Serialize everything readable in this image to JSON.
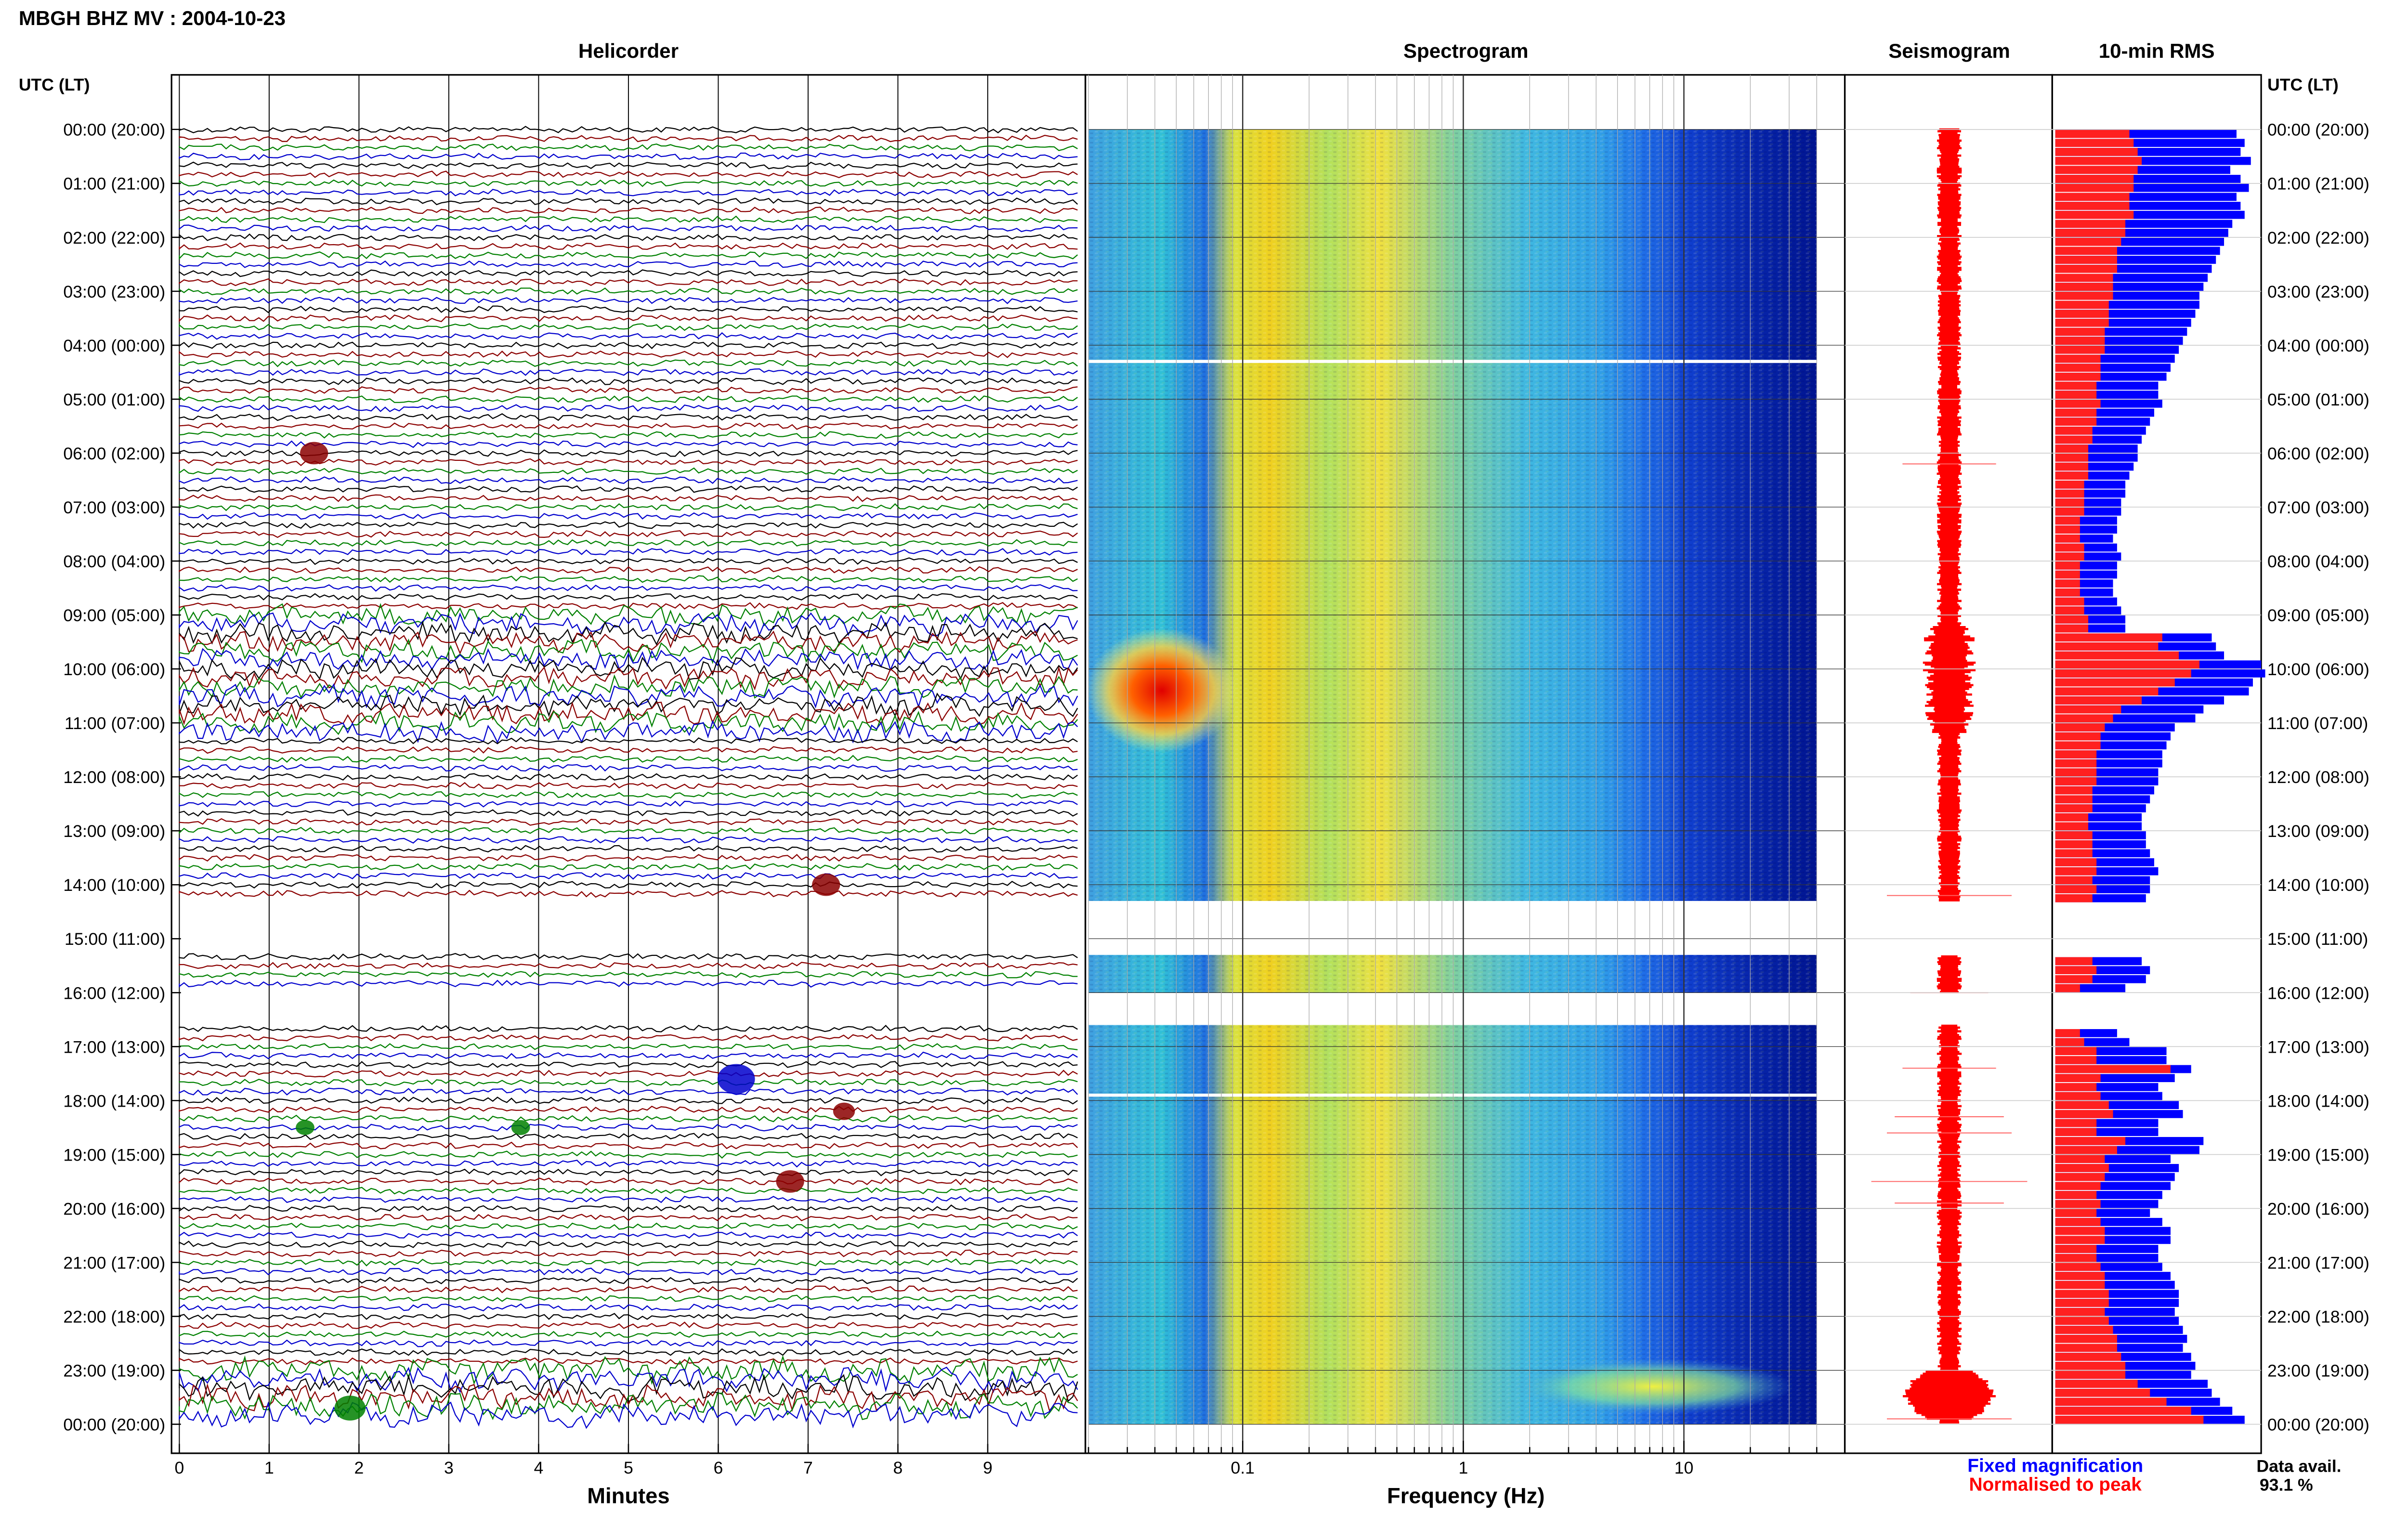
{
  "header": {
    "title": "MBGH BHZ MV : 2004-10-23"
  },
  "panels": {
    "helicorder_title": "Helicorder",
    "spectrogram_title": "Spectrogram",
    "seismogram_title": "Seismogram",
    "rms_title": "10-min RMS"
  },
  "axes": {
    "time_label_left": "UTC (LT)",
    "time_label_right": "UTC (LT)",
    "minutes_label": "Minutes",
    "frequency_label": "Frequency (Hz)"
  },
  "legend": {
    "fixed": "Fixed magnification",
    "normalised": "Normalised to peak",
    "fixed_color": "#0000ff",
    "normalised_color": "#ff0000"
  },
  "availability": {
    "label": "Data avail.",
    "value": "93.1 %"
  },
  "colors": {
    "trace_cycle": [
      "#000000",
      "#8b0000",
      "#008000",
      "#0000cd"
    ],
    "spectrogram_low": "#00008b",
    "spectrogram_high": "#ff0000"
  },
  "chart_data": {
    "type": "heatmap",
    "time_ticks": [
      "00:00 (20:00)",
      "01:00 (21:00)",
      "02:00 (22:00)",
      "03:00 (23:00)",
      "04:00 (00:00)",
      "05:00 (01:00)",
      "06:00 (02:00)",
      "07:00 (03:00)",
      "08:00 (04:00)",
      "09:00 (05:00)",
      "10:00 (06:00)",
      "11:00 (07:00)",
      "12:00 (08:00)",
      "13:00 (09:00)",
      "14:00 (10:00)",
      "15:00 (11:00)",
      "16:00 (12:00)",
      "17:00 (13:00)",
      "18:00 (14:00)",
      "19:00 (15:00)",
      "20:00 (16:00)",
      "21:00 (17:00)",
      "22:00 (18:00)",
      "23:00 (19:00)",
      "00:00 (20:00)"
    ],
    "minute_ticks": [
      "0",
      "1",
      "2",
      "3",
      "4",
      "5",
      "6",
      "7",
      "8",
      "9"
    ],
    "frequency_ticks": [
      "0.1",
      "1",
      "10"
    ],
    "frequency_range_hz": [
      0.02,
      40
    ],
    "data_gaps_utc_hours": [
      [
        14.3,
        15.3
      ],
      [
        16.0,
        16.6
      ]
    ],
    "rms_10min": {
      "fixed": [
        0.88,
        0.92,
        0.9,
        0.95,
        0.85,
        0.9,
        0.94,
        0.88,
        0.9,
        0.92,
        0.86,
        0.84,
        0.82,
        0.8,
        0.78,
        0.76,
        0.74,
        0.72,
        0.7,
        0.7,
        0.68,
        0.66,
        0.64,
        0.62,
        0.6,
        0.58,
        0.56,
        0.54,
        0.5,
        0.5,
        0.52,
        0.48,
        0.46,
        0.44,
        0.42,
        0.4,
        0.4,
        0.38,
        0.36,
        0.34,
        0.34,
        0.32,
        0.32,
        0.3,
        0.3,
        0.28,
        0.3,
        0.32,
        0.3,
        0.3,
        0.28,
        0.28,
        0.3,
        0.32,
        0.34,
        0.34,
        0.76,
        0.78,
        0.82,
        1.0,
        1.02,
        0.96,
        0.94,
        0.82,
        0.72,
        0.68,
        0.58,
        0.56,
        0.54,
        0.52,
        0.52,
        0.5,
        0.5,
        0.48,
        0.46,
        0.44,
        0.42,
        0.42,
        0.44,
        0.44,
        0.46,
        0.48,
        0.5,
        0.46,
        0.46,
        0.44,
        0.42,
        0.46,
        0.44,
        0.34,
        0.3,
        0.36,
        0.54,
        0.54,
        0.66,
        0.58,
        0.5,
        0.52,
        0.6,
        0.62,
        0.5,
        0.5,
        0.72,
        0.7,
        0.56,
        0.6,
        0.58,
        0.56,
        0.52,
        0.5,
        0.46,
        0.52,
        0.56,
        0.56,
        0.5,
        0.5,
        0.52,
        0.56,
        0.58,
        0.6,
        0.6,
        0.58,
        0.6,
        0.62,
        0.64,
        0.62,
        0.66,
        0.68,
        0.66,
        0.74,
        0.76,
        0.8,
        0.86,
        0.92,
        1.02,
        1.0,
        0.92,
        0.82
      ],
      "normalised": [
        0.36,
        0.38,
        0.4,
        0.42,
        0.4,
        0.38,
        0.38,
        0.36,
        0.36,
        0.38,
        0.34,
        0.34,
        0.32,
        0.3,
        0.3,
        0.3,
        0.28,
        0.28,
        0.28,
        0.26,
        0.26,
        0.26,
        0.24,
        0.24,
        0.24,
        0.22,
        0.22,
        0.22,
        0.2,
        0.2,
        0.22,
        0.2,
        0.2,
        0.18,
        0.18,
        0.16,
        0.16,
        0.16,
        0.16,
        0.14,
        0.14,
        0.14,
        0.14,
        0.12,
        0.12,
        0.12,
        0.14,
        0.14,
        0.12,
        0.12,
        0.12,
        0.12,
        0.14,
        0.14,
        0.16,
        0.16,
        0.52,
        0.5,
        0.6,
        0.7,
        0.66,
        0.58,
        0.5,
        0.42,
        0.32,
        0.28,
        0.24,
        0.22,
        0.22,
        0.2,
        0.2,
        0.2,
        0.2,
        0.18,
        0.18,
        0.18,
        0.16,
        0.16,
        0.18,
        0.18,
        0.18,
        0.2,
        0.2,
        0.18,
        0.2,
        0.18,
        0.18,
        0.2,
        0.18,
        0.12,
        0.12,
        0.14,
        0.2,
        0.2,
        0.56,
        0.22,
        0.2,
        0.22,
        0.26,
        0.28,
        0.2,
        0.2,
        0.34,
        0.3,
        0.24,
        0.26,
        0.24,
        0.22,
        0.2,
        0.22,
        0.2,
        0.22,
        0.24,
        0.24,
        0.2,
        0.2,
        0.22,
        0.24,
        0.24,
        0.26,
        0.26,
        0.24,
        0.26,
        0.28,
        0.3,
        0.3,
        0.32,
        0.34,
        0.34,
        0.4,
        0.46,
        0.54,
        0.66,
        0.72,
        0.86,
        0.82,
        0.7,
        0.56
      ]
    }
  }
}
